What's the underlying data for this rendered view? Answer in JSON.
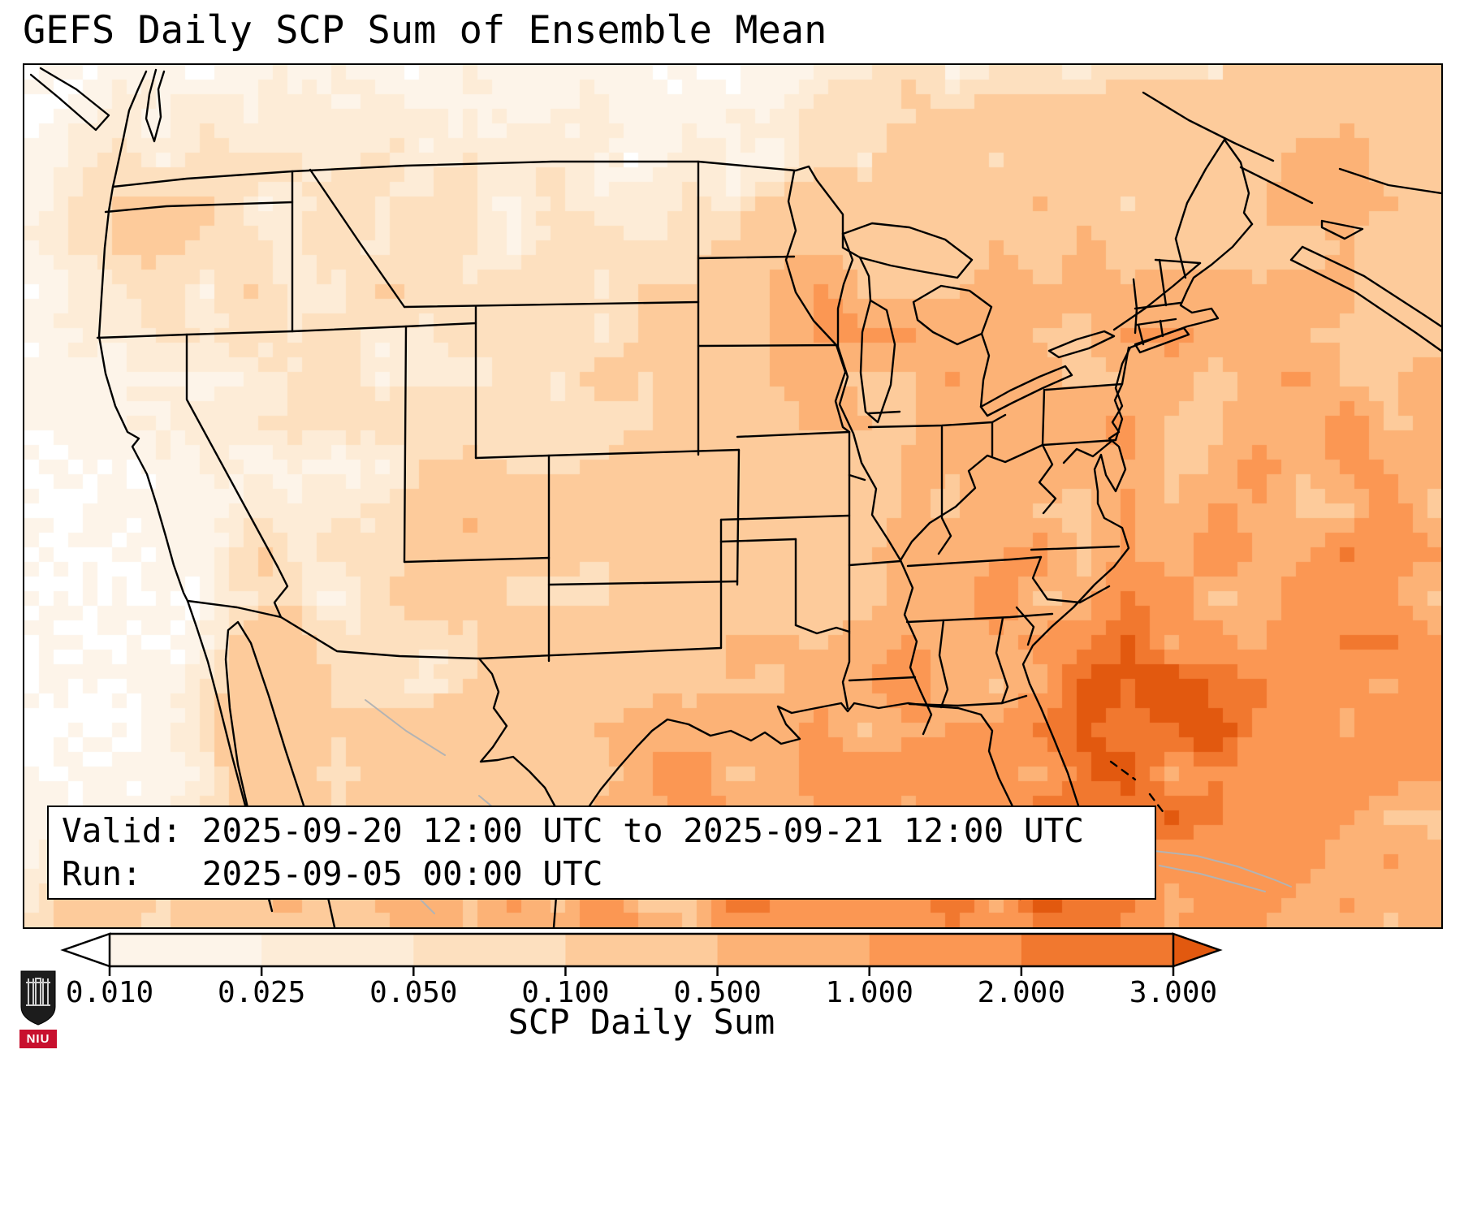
{
  "title": "GEFS Daily SCP Sum of Ensemble Mean",
  "info_box": {
    "line1": "Valid: 2025-09-20 12:00 UTC to 2025-09-21 12:00 UTC",
    "line2": "Run:   2025-09-05 00:00 UTC"
  },
  "colorbar": {
    "label": "SCP Daily Sum",
    "ticks": [
      "0.010",
      "0.025",
      "0.050",
      "0.100",
      "0.500",
      "1.000",
      "2.000",
      "3.000"
    ],
    "under_color": "#ffffff",
    "colors": [
      "#fdf4e9",
      "#fdecd7",
      "#fde0bf",
      "#fdcb9b",
      "#fcb276",
      "#fb9753",
      "#f1782f"
    ],
    "over_color": "#e2590f"
  },
  "logo": {
    "text": "NIU",
    "band_color": "#c8102e",
    "shield_color": "#1c1c1c"
  },
  "chart_data": {
    "type": "heatmap",
    "title": "GEFS Daily SCP Sum of Ensemble Mean",
    "variable": "SCP Daily Sum",
    "region": "Continental United States and adjacent waters",
    "valid_start": "2025-09-20 12:00 UTC",
    "valid_end": "2025-09-21 12:00 UTC",
    "run": "2025-09-05 00:00 UTC",
    "color_levels": [
      0.01,
      0.025,
      0.05,
      0.1,
      0.5,
      1.0,
      2.0,
      3.0
    ],
    "colormap": "Oranges",
    "legend_position": "bottom",
    "notable_maxima": [
      "Gulf of Mexico (broad 0.5-1.0 area with embedded 1-2 cells)",
      "Western Atlantic off the Southeast coast (0.5-2.0)",
      "Texas coastal plain (0.1-0.5)",
      "Wisconsin / Lake Michigan area (0.1-0.5)",
      "Gulf of California coast of Mexico (0.1-0.5)",
      "Northeast map corner / Canadian Maritimes (0.1-0.5)"
    ],
    "background_values": "Most of the interior West below 0.010; Plains and Midwest mostly 0.010-0.100"
  }
}
